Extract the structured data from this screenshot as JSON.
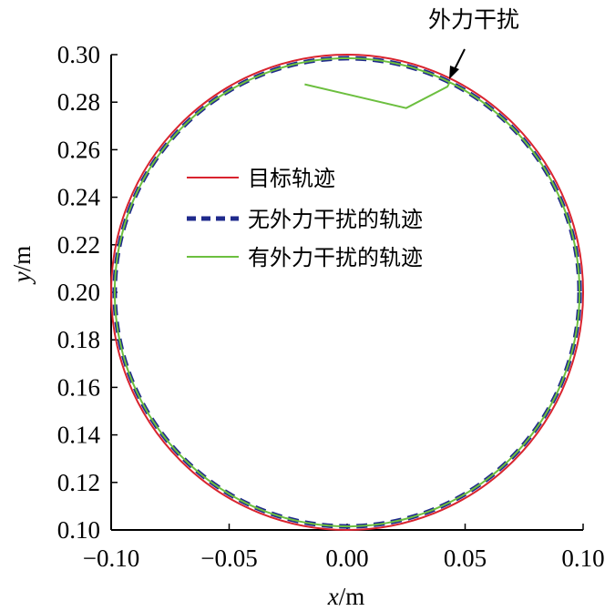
{
  "chart_data": {
    "type": "line",
    "xlabel": {
      "var": "x",
      "unit": "/m"
    },
    "ylabel": {
      "var": "y",
      "unit": "/m"
    },
    "xlim": [
      -0.1,
      0.1
    ],
    "ylim": [
      0.1,
      0.3
    ],
    "xticks": [
      "−0.10",
      "−0.05",
      "0.00",
      "0.05",
      "0.10"
    ],
    "yticks": [
      "0.10",
      "0.12",
      "0.14",
      "0.16",
      "0.18",
      "0.20",
      "0.22",
      "0.24",
      "0.26",
      "0.28",
      "0.30"
    ],
    "grid": false,
    "legend_position": "center",
    "series": [
      {
        "name": "目标轨迹",
        "style": "solid",
        "color": "#d9232e",
        "shape": "circle",
        "center": [
          0.0,
          0.2
        ],
        "radius": 0.1
      },
      {
        "name": "无外力干扰的轨迹",
        "style": "dashed",
        "color": "#1f2a8c",
        "shape": "circle",
        "center": [
          0.0,
          0.2
        ],
        "radius": 0.0985
      },
      {
        "name": "有外力干扰的轨迹",
        "style": "solid",
        "color": "#6cbf3f",
        "shape": "circle_with_disturbance",
        "center": [
          0.0,
          0.2
        ],
        "radius": 0.0985,
        "disturbance_points": [
          [
            0.0425,
            0.2865
          ],
          [
            0.025,
            0.2775
          ],
          [
            -0.018,
            0.2875
          ]
        ]
      }
    ],
    "annotation": {
      "text": "外力干扰",
      "target": [
        0.043,
        0.2885
      ]
    }
  }
}
